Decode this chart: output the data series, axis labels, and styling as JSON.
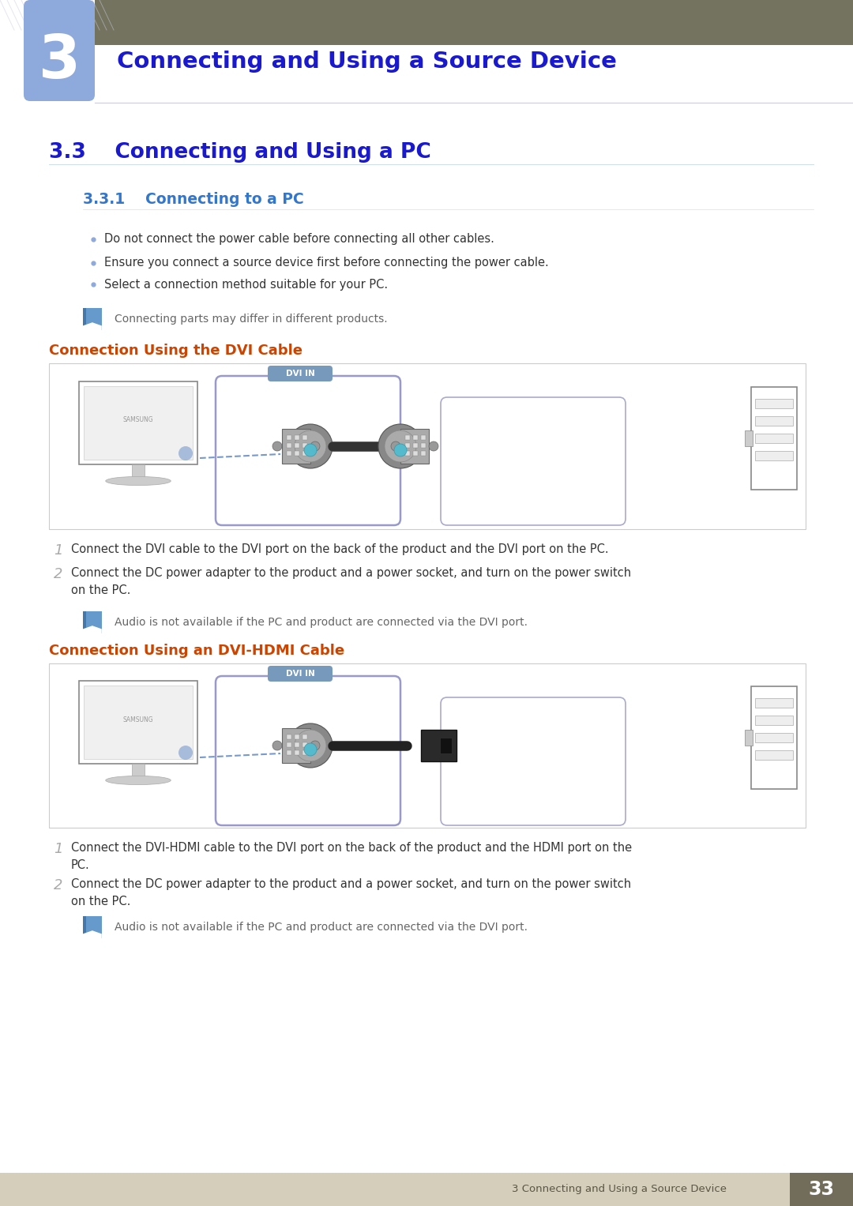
{
  "page_width": 10.8,
  "page_height": 15.27,
  "dpi": 100,
  "bg_color": "#ffffff",
  "header_bar_color": "#737360",
  "chapter_box_color": "#8eaadc",
  "chapter_number": "3",
  "chapter_title": "Connecting and Using a Source Device",
  "chapter_title_color": "#1a1acc",
  "section_title": "3.3    Connecting and Using a PC",
  "section_title_color": "#1a1acc",
  "subsection_title": "3.3.1    Connecting to a PC",
  "subsection_title_color": "#3377cc",
  "bullet_color": "#8eaadc",
  "bullet_points": [
    "Do not connect the power cable before connecting all other cables.",
    "Ensure you connect a source device first before connecting the power cable.",
    "Select a connection method suitable for your PC."
  ],
  "note_text1": "Connecting parts may differ in different products.",
  "connection_title1": "Connection Using the DVI Cable",
  "connection_title2": "Connection Using an DVI-HDMI Cable",
  "connection_title_color": "#cc4400",
  "step1_dvi": "Connect the DVI cable to the DVI port on the back of the product and the DVI port on the PC.",
  "step2_dvi_line1": "Connect the DC power adapter to the product and a power socket, and turn on the power switch",
  "step2_dvi_line2": "on the PC.",
  "note_text2": "Audio is not available if the PC and product are connected via the DVI port.",
  "step1_hdmi_line1": "Connect the DVI-HDMI cable to the DVI port on the back of the product and the HDMI port on the",
  "step1_hdmi_line2": "PC.",
  "step2_hdmi_line1": "Connect the DC power adapter to the product and a power socket, and turn on the power switch",
  "step2_hdmi_line2": "on the PC.",
  "note_text3": "Audio is not available if the PC and product are connected via the DVI port.",
  "footer_bg": "#d4ceba",
  "footer_text": "3 Connecting and Using a Source Device",
  "footer_page": "33",
  "footer_page_bg": "#726d5a",
  "text_color": "#333333",
  "gray_text_color": "#666666",
  "dvi_label": "DVI IN",
  "dvi_label_bg": "#7799bb",
  "diagram_border_color": "#9999cc",
  "diagram_right_border_color": "#aaaacc",
  "line_color": "#444444"
}
